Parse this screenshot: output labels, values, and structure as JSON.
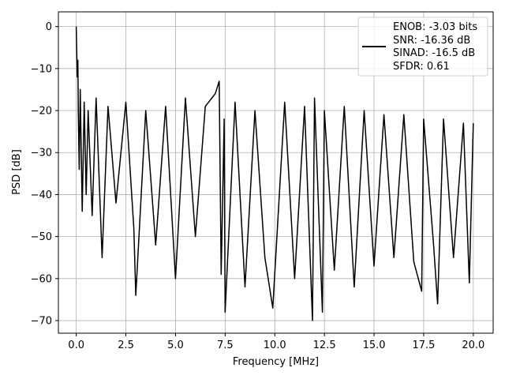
{
  "chart_data": {
    "type": "line",
    "xlabel": "Frequency [MHz]",
    "ylabel": "PSD [dB]",
    "xlim": [
      -0.9,
      21.0
    ],
    "ylim": [
      -73,
      3.5
    ],
    "xticks": [
      0.0,
      2.5,
      5.0,
      7.5,
      10.0,
      12.5,
      15.0,
      17.5,
      20.0
    ],
    "xtick_labels": [
      "0.0",
      "2.5",
      "5.0",
      "7.5",
      "10.0",
      "12.5",
      "15.0",
      "17.5",
      "20.0"
    ],
    "yticks": [
      0,
      -10,
      -20,
      -30,
      -40,
      -50,
      -60,
      -70
    ],
    "ytick_labels": [
      "0",
      "−10",
      "−20",
      "−30",
      "−40",
      "−50",
      "−60",
      "−70"
    ],
    "grid": true,
    "legend_position": "top-right",
    "legend_lines": [
      "ENOB: -3.03 bits",
      "SNR: -16.36 dB",
      "SINAD: -16.5 dB",
      "SFDR: 0.61"
    ],
    "line_color": "#000000",
    "series": [
      {
        "x": [
          0.0,
          0.02,
          0.05,
          0.08,
          0.1,
          0.15,
          0.2,
          0.3,
          0.4,
          0.5,
          0.6,
          0.8,
          1.0,
          1.3,
          1.6,
          2.0,
          2.5,
          2.9,
          3.0,
          3.5,
          4.0,
          4.5,
          5.0,
          5.5,
          6.0,
          6.5,
          7.0,
          7.2,
          7.3,
          7.45,
          7.5,
          8.0,
          8.5,
          9.0,
          9.5,
          9.9,
          10.5,
          11.0,
          11.5,
          11.9,
          12.0,
          12.4,
          12.5,
          13.0,
          13.5,
          14.0,
          14.5,
          15.0,
          15.5,
          16.0,
          16.5,
          17.0,
          17.4,
          17.5,
          18.0,
          18.2,
          18.5,
          19.0,
          19.5,
          19.8,
          20.0
        ],
        "y": [
          0,
          -5,
          -12,
          -8,
          -20,
          -34,
          -15,
          -44,
          -18,
          -40,
          -20,
          -45,
          -17,
          -55,
          -19,
          -42,
          -18,
          -48,
          -64,
          -20,
          -52,
          -19,
          -60,
          -17,
          -50,
          -19,
          -16,
          -13,
          -59,
          -22,
          -68,
          -18,
          -62,
          -20,
          -55,
          -67,
          -18,
          -60,
          -19,
          -70,
          -17,
          -68,
          -20,
          -58,
          -19,
          -62,
          -20,
          -57,
          -21,
          -55,
          -21,
          -56,
          -63,
          -22,
          -52,
          -66,
          -22,
          -55,
          -23,
          -61,
          -23
        ]
      }
    ]
  }
}
